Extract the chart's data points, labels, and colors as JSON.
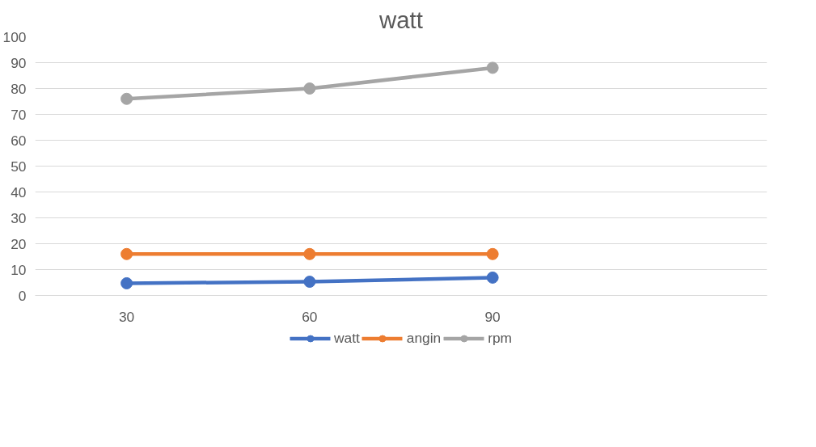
{
  "chart_data": {
    "type": "line",
    "title": "watt",
    "categories": [
      "30",
      "60",
      "90",
      null
    ],
    "series": [
      {
        "name": "watt",
        "color": "#4472c4",
        "values": [
          4.7,
          5.3,
          6.9,
          null
        ]
      },
      {
        "name": "angin",
        "color": "#ed7d31",
        "values": [
          16,
          16,
          16,
          null
        ]
      },
      {
        "name": "rpm",
        "color": "#a5a5a5",
        "values": [
          76,
          80,
          88,
          null
        ]
      }
    ],
    "ylim": [
      0,
      100
    ],
    "yticks": [
      0,
      10,
      20,
      30,
      40,
      50,
      60,
      70,
      80,
      90,
      100
    ],
    "grid": "y",
    "legend": "bottom",
    "marker": "circle"
  }
}
